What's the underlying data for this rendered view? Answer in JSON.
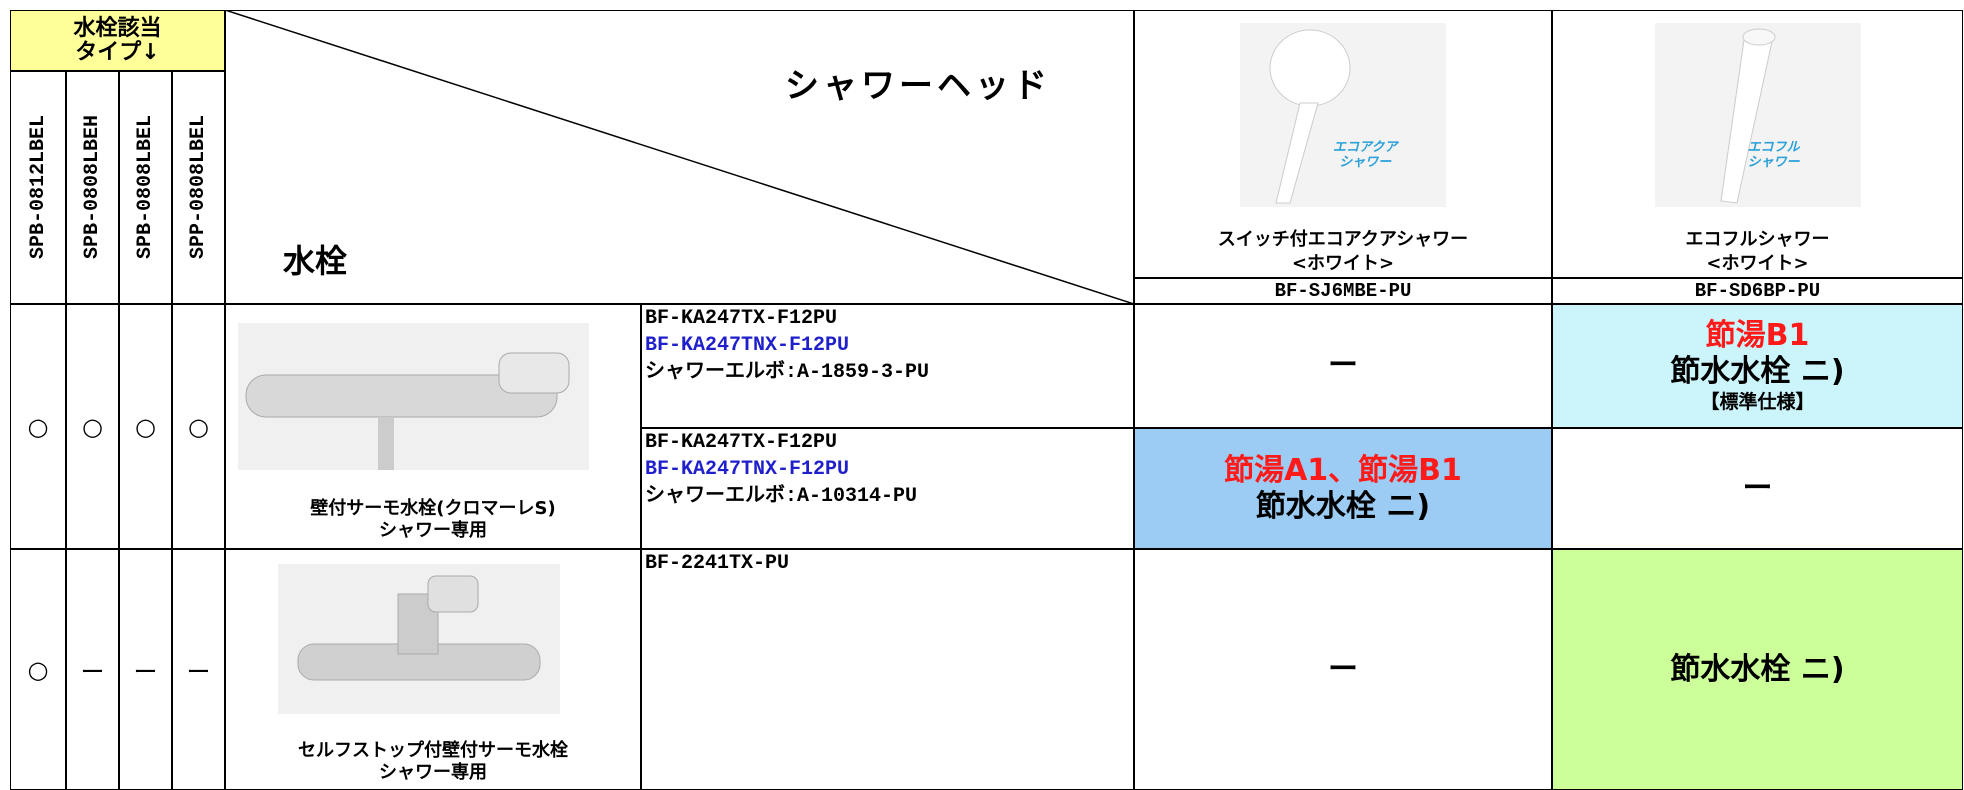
{
  "header": {
    "type_label": [
      "水栓該当",
      "タイプ↓"
    ],
    "types": [
      "SPB-0812LBEL",
      "SPB-0808LBEH",
      "SPB-0808LBEL",
      "SPP-0808LBEL"
    ],
    "shower_head_label": "シャワーヘッド",
    "faucet_label": "水栓"
  },
  "shower_heads": [
    {
      "name": "スイッチ付エコアクアシャワー",
      "color": "<ホワイト>",
      "code": "BF-SJ6MBE-PU",
      "badge": [
        "エコアクア",
        "シャワー"
      ]
    },
    {
      "name": "エコフルシャワー",
      "color": "<ホワイト>",
      "code": "BF-SD6BP-PU",
      "badge": [
        "エコフル",
        "シャワー"
      ]
    }
  ],
  "faucets": [
    {
      "name_lines": [
        "壁付サーモ水栓(クロマーレS)",
        "シャワー専用"
      ],
      "applicable": [
        "○",
        "○",
        "○",
        "○"
      ],
      "variants": [
        {
          "models": [
            {
              "text": "BF-KA247TX-F12PU",
              "color": "#000000"
            },
            {
              "text": "BF-KA247TNX-F12PU",
              "color": "#1f1fcc"
            },
            {
              "text": "シャワーエルボ:A-1859-3-PU",
              "color": "#000000"
            }
          ],
          "cells": [
            {
              "text": "ー",
              "fill": "#ffffff"
            },
            {
              "highlight": "節湯B1",
              "text": "節水水栓 ニ)",
              "note": "【標準仕様】",
              "fill": "#ccf5fb"
            }
          ]
        },
        {
          "models": [
            {
              "text": "BF-KA247TX-F12PU",
              "color": "#000000"
            },
            {
              "text": "BF-KA247TNX-F12PU",
              "color": "#1f1fcc"
            },
            {
              "text": "シャワーエルボ:A-10314-PU",
              "color": "#000000"
            }
          ],
          "cells": [
            {
              "highlight": "節湯A1、節湯B1",
              "text": "節水水栓 ニ)",
              "fill": "#9ccbf3"
            },
            {
              "text": "ー",
              "fill": "#ffffff"
            }
          ]
        }
      ]
    },
    {
      "name_lines": [
        "セルフストップ付壁付サーモ水栓",
        "シャワー専用"
      ],
      "applicable": [
        "○",
        "ー",
        "ー",
        "ー"
      ],
      "variants": [
        {
          "models": [
            {
              "text": "BF-2241TX-PU",
              "color": "#000000"
            }
          ],
          "cells": [
            {
              "text": "ー",
              "fill": "#ffffff"
            },
            {
              "text": "節水水栓 ニ)",
              "fill": "#ccff99"
            }
          ]
        }
      ]
    }
  ]
}
